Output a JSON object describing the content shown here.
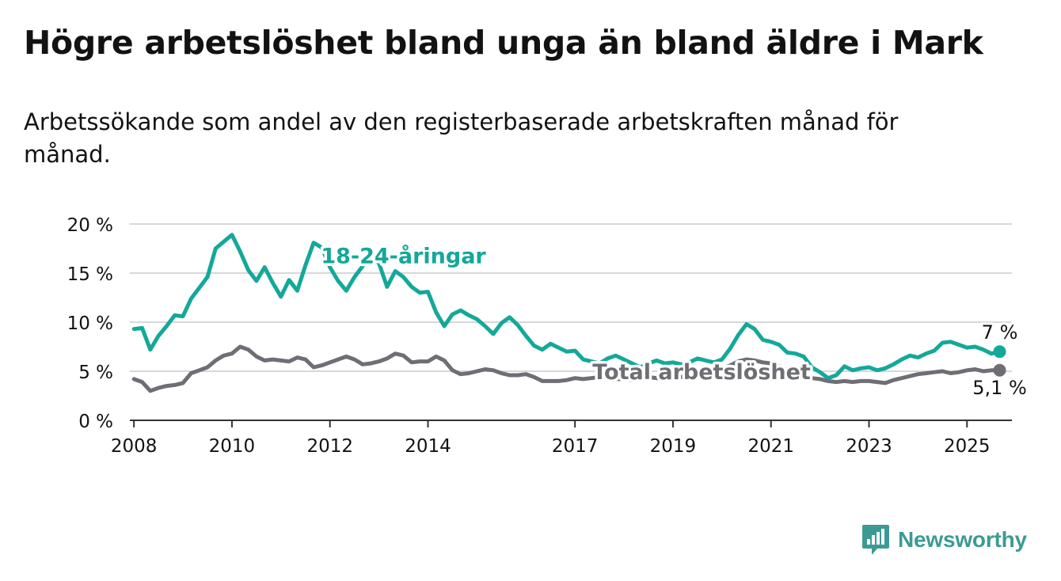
{
  "title": "Högre arbetslöshet bland unga än bland äldre i Mark",
  "subtitle": "Arbetssökande som andel av den registerbaserade arbetskraften månad för månad.",
  "brand": {
    "name": "Newsworthy",
    "icon": "newsworthy-logo-icon"
  },
  "colors": {
    "youth": "#14a899",
    "total": "#6f6e74",
    "grid": "#d8d8d8",
    "axis": "#333333",
    "text": "#121212"
  },
  "chart_data": {
    "type": "line",
    "xlabel": "",
    "ylabel": "",
    "ylim": [
      0,
      20
    ],
    "xlim": [
      "2007-12",
      "2025-12"
    ],
    "grid": true,
    "y_ticks": [
      0,
      5,
      10,
      15,
      20
    ],
    "y_tick_labels": [
      "0 %",
      "5 %",
      "10 %",
      "15 %",
      "20 %"
    ],
    "x_ticks": [
      "2008-01",
      "2010-01",
      "2012-01",
      "2014-01",
      "2017-01",
      "2019-01",
      "2021-01",
      "2023-01",
      "2025-01"
    ],
    "x_tick_labels": [
      "2008",
      "2010",
      "2012",
      "2014",
      "2017",
      "2019",
      "2021",
      "2023",
      "2025"
    ],
    "series": [
      {
        "name": "18-24-åringar",
        "color": "#14a899",
        "end_label": "7 %",
        "points": [
          [
            "2008-01",
            9.3
          ],
          [
            "2008-03",
            9.4
          ],
          [
            "2008-05",
            7.2
          ],
          [
            "2008-07",
            8.6
          ],
          [
            "2008-09",
            9.6
          ],
          [
            "2008-11",
            10.7
          ],
          [
            "2009-01",
            10.6
          ],
          [
            "2009-03",
            12.4
          ],
          [
            "2009-05",
            13.5
          ],
          [
            "2009-07",
            14.6
          ],
          [
            "2009-09",
            17.5
          ],
          [
            "2009-11",
            18.2
          ],
          [
            "2010-01",
            18.9
          ],
          [
            "2010-03",
            17.2
          ],
          [
            "2010-05",
            15.3
          ],
          [
            "2010-07",
            14.2
          ],
          [
            "2010-09",
            15.6
          ],
          [
            "2010-11",
            14.0
          ],
          [
            "2011-01",
            12.6
          ],
          [
            "2011-03",
            14.3
          ],
          [
            "2011-05",
            13.2
          ],
          [
            "2011-07",
            15.8
          ],
          [
            "2011-09",
            18.1
          ],
          [
            "2011-11",
            17.6
          ],
          [
            "2012-01",
            15.6
          ],
          [
            "2012-03",
            14.2
          ],
          [
            "2012-05",
            13.2
          ],
          [
            "2012-07",
            14.6
          ],
          [
            "2012-09",
            15.7
          ],
          [
            "2012-11",
            16.8
          ],
          [
            "2013-01",
            16.0
          ],
          [
            "2013-03",
            13.6
          ],
          [
            "2013-05",
            15.2
          ],
          [
            "2013-07",
            14.6
          ],
          [
            "2013-09",
            13.6
          ],
          [
            "2013-11",
            13.0
          ],
          [
            "2014-01",
            13.1
          ],
          [
            "2014-03",
            11.0
          ],
          [
            "2014-05",
            9.6
          ],
          [
            "2014-07",
            10.8
          ],
          [
            "2014-09",
            11.2
          ],
          [
            "2014-11",
            10.7
          ],
          [
            "2015-01",
            10.3
          ],
          [
            "2015-03",
            9.6
          ],
          [
            "2015-05",
            8.8
          ],
          [
            "2015-07",
            9.9
          ],
          [
            "2015-09",
            10.5
          ],
          [
            "2015-11",
            9.7
          ],
          [
            "2016-01",
            8.6
          ],
          [
            "2016-03",
            7.6
          ],
          [
            "2016-05",
            7.2
          ],
          [
            "2016-07",
            7.8
          ],
          [
            "2016-09",
            7.4
          ],
          [
            "2016-11",
            7.0
          ],
          [
            "2017-01",
            7.1
          ],
          [
            "2017-03",
            6.2
          ],
          [
            "2017-05",
            6.0
          ],
          [
            "2017-07",
            5.8
          ],
          [
            "2017-09",
            6.3
          ],
          [
            "2017-11",
            6.6
          ],
          [
            "2018-01",
            6.2
          ],
          [
            "2018-03",
            5.8
          ],
          [
            "2018-05",
            5.4
          ],
          [
            "2018-07",
            5.8
          ],
          [
            "2018-09",
            6.1
          ],
          [
            "2018-11",
            5.8
          ],
          [
            "2019-01",
            5.9
          ],
          [
            "2019-03",
            5.7
          ],
          [
            "2019-05",
            5.9
          ],
          [
            "2019-07",
            6.3
          ],
          [
            "2019-09",
            6.1
          ],
          [
            "2019-11",
            5.9
          ],
          [
            "2020-01",
            6.2
          ],
          [
            "2020-03",
            7.3
          ],
          [
            "2020-05",
            8.7
          ],
          [
            "2020-07",
            9.8
          ],
          [
            "2020-09",
            9.3
          ],
          [
            "2020-11",
            8.2
          ],
          [
            "2021-01",
            8.0
          ],
          [
            "2021-03",
            7.7
          ],
          [
            "2021-05",
            6.9
          ],
          [
            "2021-07",
            6.8
          ],
          [
            "2021-09",
            6.5
          ],
          [
            "2021-11",
            5.4
          ],
          [
            "2022-01",
            4.9
          ],
          [
            "2022-03",
            4.3
          ],
          [
            "2022-05",
            4.6
          ],
          [
            "2022-07",
            5.5
          ],
          [
            "2022-09",
            5.1
          ],
          [
            "2022-11",
            5.3
          ],
          [
            "2023-01",
            5.4
          ],
          [
            "2023-03",
            5.1
          ],
          [
            "2023-05",
            5.3
          ],
          [
            "2023-07",
            5.7
          ],
          [
            "2023-09",
            6.2
          ],
          [
            "2023-11",
            6.6
          ],
          [
            "2024-01",
            6.4
          ],
          [
            "2024-03",
            6.8
          ],
          [
            "2024-05",
            7.1
          ],
          [
            "2024-07",
            7.9
          ],
          [
            "2024-09",
            8.0
          ],
          [
            "2024-11",
            7.7
          ],
          [
            "2025-01",
            7.4
          ],
          [
            "2025-03",
            7.5
          ],
          [
            "2025-05",
            7.2
          ],
          [
            "2025-07",
            6.8
          ],
          [
            "2025-09",
            7.0
          ]
        ]
      },
      {
        "name": "Total arbetslöshet",
        "color": "#6f6e74",
        "end_label": "5,1 %",
        "points": [
          [
            "2008-01",
            4.2
          ],
          [
            "2008-03",
            3.9
          ],
          [
            "2008-05",
            3.0
          ],
          [
            "2008-07",
            3.3
          ],
          [
            "2008-09",
            3.5
          ],
          [
            "2008-11",
            3.6
          ],
          [
            "2009-01",
            3.8
          ],
          [
            "2009-03",
            4.8
          ],
          [
            "2009-05",
            5.1
          ],
          [
            "2009-07",
            5.4
          ],
          [
            "2009-09",
            6.1
          ],
          [
            "2009-11",
            6.6
          ],
          [
            "2010-01",
            6.8
          ],
          [
            "2010-03",
            7.5
          ],
          [
            "2010-05",
            7.2
          ],
          [
            "2010-07",
            6.5
          ],
          [
            "2010-09",
            6.1
          ],
          [
            "2010-11",
            6.2
          ],
          [
            "2011-01",
            6.1
          ],
          [
            "2011-03",
            6.0
          ],
          [
            "2011-05",
            6.4
          ],
          [
            "2011-07",
            6.2
          ],
          [
            "2011-09",
            5.4
          ],
          [
            "2011-11",
            5.6
          ],
          [
            "2012-01",
            5.9
          ],
          [
            "2012-03",
            6.2
          ],
          [
            "2012-05",
            6.5
          ],
          [
            "2012-07",
            6.2
          ],
          [
            "2012-09",
            5.7
          ],
          [
            "2012-11",
            5.8
          ],
          [
            "2013-01",
            6.0
          ],
          [
            "2013-03",
            6.3
          ],
          [
            "2013-05",
            6.8
          ],
          [
            "2013-07",
            6.6
          ],
          [
            "2013-09",
            5.9
          ],
          [
            "2013-11",
            6.0
          ],
          [
            "2014-01",
            6.0
          ],
          [
            "2014-03",
            6.5
          ],
          [
            "2014-05",
            6.1
          ],
          [
            "2014-07",
            5.1
          ],
          [
            "2014-09",
            4.7
          ],
          [
            "2014-11",
            4.8
          ],
          [
            "2015-01",
            5.0
          ],
          [
            "2015-03",
            5.2
          ],
          [
            "2015-05",
            5.1
          ],
          [
            "2015-07",
            4.8
          ],
          [
            "2015-09",
            4.6
          ],
          [
            "2015-11",
            4.6
          ],
          [
            "2016-01",
            4.7
          ],
          [
            "2016-03",
            4.4
          ],
          [
            "2016-05",
            4.0
          ],
          [
            "2016-07",
            4.0
          ],
          [
            "2016-09",
            4.0
          ],
          [
            "2016-11",
            4.1
          ],
          [
            "2017-01",
            4.3
          ],
          [
            "2017-03",
            4.2
          ],
          [
            "2017-05",
            4.3
          ],
          [
            "2017-07",
            4.4
          ],
          [
            "2017-09",
            4.3
          ],
          [
            "2017-11",
            4.2
          ],
          [
            "2018-01",
            4.2
          ],
          [
            "2018-03",
            4.1
          ],
          [
            "2018-05",
            4.2
          ],
          [
            "2018-07",
            4.4
          ],
          [
            "2018-09",
            4.3
          ],
          [
            "2018-11",
            4.2
          ],
          [
            "2019-01",
            4.3
          ],
          [
            "2019-03",
            4.4
          ],
          [
            "2019-05",
            4.5
          ],
          [
            "2019-07",
            4.8
          ],
          [
            "2019-09",
            4.9
          ],
          [
            "2019-11",
            5.0
          ],
          [
            "2020-01",
            5.2
          ],
          [
            "2020-03",
            5.6
          ],
          [
            "2020-05",
            6.0
          ],
          [
            "2020-07",
            6.2
          ],
          [
            "2020-09",
            6.1
          ],
          [
            "2020-11",
            5.9
          ],
          [
            "2021-01",
            5.8
          ],
          [
            "2021-03",
            5.5
          ],
          [
            "2021-05",
            5.1
          ],
          [
            "2021-07",
            4.9
          ],
          [
            "2021-09",
            4.6
          ],
          [
            "2021-11",
            4.3
          ],
          [
            "2022-01",
            4.2
          ],
          [
            "2022-03",
            4.0
          ],
          [
            "2022-05",
            3.9
          ],
          [
            "2022-07",
            4.0
          ],
          [
            "2022-09",
            3.9
          ],
          [
            "2022-11",
            4.0
          ],
          [
            "2023-01",
            4.0
          ],
          [
            "2023-03",
            3.9
          ],
          [
            "2023-05",
            3.8
          ],
          [
            "2023-07",
            4.1
          ],
          [
            "2023-09",
            4.3
          ],
          [
            "2023-11",
            4.5
          ],
          [
            "2024-01",
            4.7
          ],
          [
            "2024-03",
            4.8
          ],
          [
            "2024-05",
            4.9
          ],
          [
            "2024-07",
            5.0
          ],
          [
            "2024-09",
            4.8
          ],
          [
            "2024-11",
            4.9
          ],
          [
            "2025-01",
            5.1
          ],
          [
            "2025-03",
            5.2
          ],
          [
            "2025-05",
            5.0
          ],
          [
            "2025-07",
            5.1
          ],
          [
            "2025-09",
            5.1
          ]
        ]
      }
    ]
  }
}
